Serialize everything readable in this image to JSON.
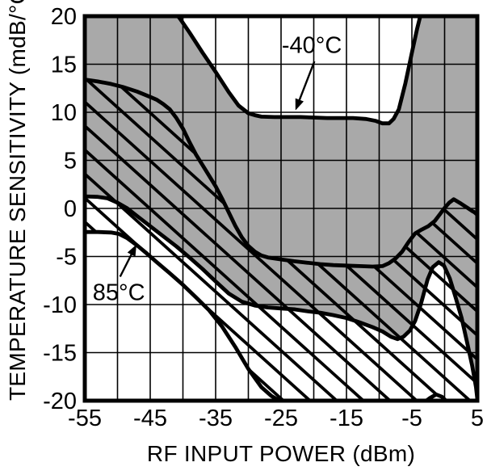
{
  "chart_data": {
    "type": "area",
    "title": "",
    "xlabel": "RF INPUT POWER (dBm)",
    "ylabel": "TEMPERATURE SENSITIVITY (mdB/°C)",
    "xlim": [
      -55,
      5
    ],
    "ylim": [
      -20,
      20
    ],
    "grid": true,
    "x_grid_step": 5,
    "y_grid_step": 5,
    "x_tick_labels": [
      "-55",
      "-45",
      "-35",
      "-25",
      "-15",
      "-5",
      "5"
    ],
    "x_tick_values": [
      -55,
      -45,
      -35,
      -25,
      -15,
      -5,
      5
    ],
    "y_tick_labels": [
      "20",
      "15",
      "10",
      "5",
      "0",
      "-5",
      "-10",
      "-15",
      "-20"
    ],
    "y_tick_values": [
      20,
      15,
      10,
      5,
      0,
      -5,
      -10,
      -15,
      -20
    ],
    "frame_color": "#000000",
    "grid_color": "#000000",
    "hatch": {
      "spacing_px": 33,
      "slope": 0.9,
      "line_width": 3.8,
      "color": "#000000"
    },
    "bands": [
      {
        "name": "-40°C",
        "fill": "solid",
        "color": "#a9a9a9",
        "upper": [
          [
            -55,
            21.5
          ],
          [
            -43,
            21.5
          ],
          [
            -41.5,
            20.6
          ],
          [
            -40.5,
            19.8
          ],
          [
            -39,
            18.3
          ],
          [
            -37,
            16.2
          ],
          [
            -35,
            14.2
          ],
          [
            -33,
            12.1
          ],
          [
            -31.5,
            10.7
          ],
          [
            -30,
            9.9
          ],
          [
            -29,
            9.7
          ],
          [
            -28,
            9.55
          ],
          [
            -26,
            9.5
          ],
          [
            -24,
            9.5
          ],
          [
            -22,
            9.5
          ],
          [
            -20,
            9.45
          ],
          [
            -18,
            9.4
          ],
          [
            -16,
            9.4
          ],
          [
            -14,
            9.4
          ],
          [
            -12,
            9.3
          ],
          [
            -10.5,
            9.1
          ],
          [
            -9.5,
            8.85
          ],
          [
            -8.5,
            8.85
          ],
          [
            -7.8,
            9.3
          ],
          [
            -7,
            10.3
          ],
          [
            -6,
            13.0
          ],
          [
            -5,
            16.2
          ],
          [
            -4.2,
            18.7
          ],
          [
            -3.6,
            20.3
          ],
          [
            -3.2,
            21.5
          ],
          [
            5,
            21.5
          ]
        ],
        "lower": [
          [
            -55,
            1.25
          ],
          [
            -53,
            1.2
          ],
          [
            -51.5,
            1.05
          ],
          [
            -50,
            0.6
          ],
          [
            -48.5,
            0.0
          ],
          [
            -47,
            -0.8
          ],
          [
            -45,
            -1.85
          ],
          [
            -43,
            -2.9
          ],
          [
            -41,
            -3.95
          ],
          [
            -39,
            -5.1
          ],
          [
            -37,
            -6.3
          ],
          [
            -35,
            -7.6
          ],
          [
            -33,
            -8.85
          ],
          [
            -31,
            -9.7
          ],
          [
            -29,
            -10.1
          ],
          [
            -27,
            -10.3
          ],
          [
            -25,
            -10.4
          ],
          [
            -23,
            -10.5
          ],
          [
            -21,
            -10.7
          ],
          [
            -19,
            -10.85
          ],
          [
            -17,
            -11.1
          ],
          [
            -15,
            -11.4
          ],
          [
            -13,
            -11.85
          ],
          [
            -11,
            -12.35
          ],
          [
            -9.5,
            -12.8
          ],
          [
            -8.2,
            -13.35
          ],
          [
            -7.2,
            -13.6
          ],
          [
            -6.3,
            -13.35
          ],
          [
            -5.3,
            -12.7
          ],
          [
            -4.5,
            -11.7
          ],
          [
            -3.6,
            -9.9
          ],
          [
            -2.6,
            -7.4
          ],
          [
            -1.8,
            -6.1
          ],
          [
            -0.9,
            -5.6
          ],
          [
            -0.1,
            -5.95
          ],
          [
            0.8,
            -7.3
          ],
          [
            1.7,
            -9.3
          ],
          [
            2.6,
            -11.4
          ],
          [
            3.4,
            -13.8
          ],
          [
            4.2,
            -16.3
          ],
          [
            4.8,
            -18.6
          ],
          [
            5,
            -19.8
          ]
        ]
      },
      {
        "name": "85°C",
        "fill": "hatch",
        "color": "#000000",
        "upper": [
          [
            -55,
            13.4
          ],
          [
            -53,
            13.2
          ],
          [
            -51,
            12.95
          ],
          [
            -49,
            12.6
          ],
          [
            -47,
            12.15
          ],
          [
            -45,
            11.6
          ],
          [
            -44,
            11.3
          ],
          [
            -43,
            10.85
          ],
          [
            -42,
            10.3
          ],
          [
            -41,
            9.4
          ],
          [
            -40,
            8.3
          ],
          [
            -39,
            6.9
          ],
          [
            -38,
            5.6
          ],
          [
            -37,
            4.5
          ],
          [
            -36,
            3.4
          ],
          [
            -35,
            2.3
          ],
          [
            -34,
            1.0
          ],
          [
            -33,
            -0.4
          ],
          [
            -32,
            -1.8
          ],
          [
            -31,
            -3.0
          ],
          [
            -30,
            -3.9
          ],
          [
            -29,
            -4.5
          ],
          [
            -28,
            -4.9
          ],
          [
            -27,
            -5.1
          ],
          [
            -25,
            -5.3
          ],
          [
            -23,
            -5.5
          ],
          [
            -21,
            -5.65
          ],
          [
            -19,
            -5.8
          ],
          [
            -17,
            -5.9
          ],
          [
            -15,
            -5.95
          ],
          [
            -13,
            -6.0
          ],
          [
            -11,
            -6.05
          ],
          [
            -9.5,
            -6.0
          ],
          [
            -8.5,
            -5.7
          ],
          [
            -7.5,
            -5.2
          ],
          [
            -6.5,
            -4.5
          ],
          [
            -5.5,
            -3.5
          ],
          [
            -4.5,
            -2.6
          ],
          [
            -3.5,
            -2.2
          ],
          [
            -2.5,
            -1.85
          ],
          [
            -1.5,
            -1.3
          ],
          [
            -0.7,
            -0.6
          ],
          [
            0,
            0.05
          ],
          [
            0.7,
            0.6
          ],
          [
            1.4,
            0.95
          ],
          [
            2.5,
            0.5
          ],
          [
            3.5,
            0.05
          ],
          [
            4.3,
            -0.3
          ],
          [
            5,
            -0.55
          ]
        ],
        "lower": [
          [
            -55,
            -2.45
          ],
          [
            -53,
            -2.45
          ],
          [
            -51,
            -2.5
          ],
          [
            -49.8,
            -2.65
          ],
          [
            -48.5,
            -3.1
          ],
          [
            -47,
            -3.85
          ],
          [
            -45.5,
            -4.7
          ],
          [
            -44,
            -5.6
          ],
          [
            -42,
            -6.75
          ],
          [
            -40,
            -7.95
          ],
          [
            -38,
            -9.25
          ],
          [
            -36,
            -10.6
          ],
          [
            -34,
            -12.3
          ],
          [
            -32,
            -14.4
          ],
          [
            -30,
            -16.7
          ],
          [
            -28,
            -18.6
          ],
          [
            -26.5,
            -19.5
          ],
          [
            -25,
            -20.1
          ],
          [
            -23.5,
            -20.55
          ],
          [
            -4.2,
            -20.55
          ],
          [
            -3.2,
            -20.2
          ],
          [
            -2.3,
            -19.75
          ],
          [
            -1.3,
            -19.35
          ],
          [
            -0.4,
            -19.6
          ],
          [
            0.4,
            -20.15
          ],
          [
            1.3,
            -20.55
          ],
          [
            5,
            -20.55
          ]
        ]
      }
    ],
    "annotations": [
      {
        "text": "-40°C",
        "text_pos": [
          -20.3,
          17.0
        ],
        "arrow_from": [
          -19.9,
          15.3
        ],
        "arrow_to": [
          -22.8,
          10.2
        ]
      },
      {
        "text": "85°C",
        "text_pos": [
          -49.8,
          -8.7
        ],
        "arrow_from": [
          -49.6,
          -7.1
        ],
        "arrow_to": [
          -47.1,
          -3.75
        ]
      }
    ]
  }
}
